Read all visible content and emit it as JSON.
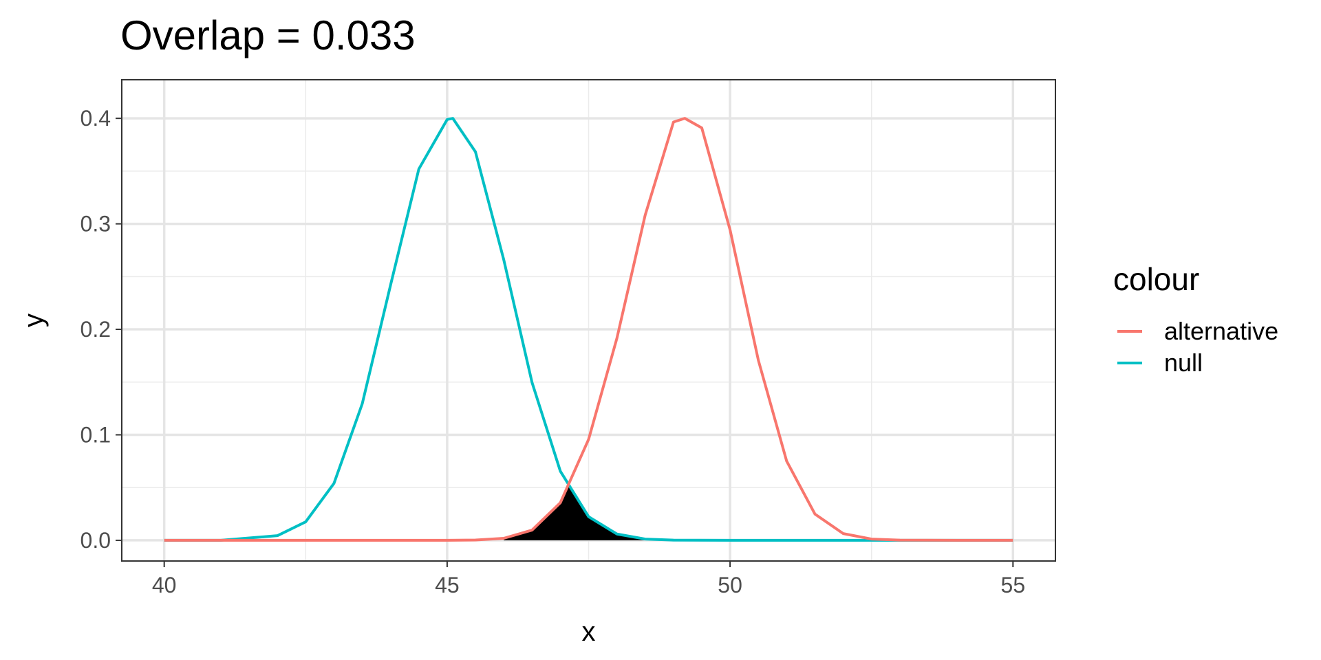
{
  "chart_data": {
    "type": "line",
    "title": "Overlap = 0.033",
    "xlabel": "x",
    "ylabel": "y",
    "xlim": [
      39.25,
      55.75
    ],
    "ylim": [
      -0.0196,
      0.4366
    ],
    "x_ticks": [
      40,
      45,
      50,
      55
    ],
    "x_tick_labels": [
      "40",
      "45",
      "50",
      "55"
    ],
    "y_ticks": [
      0.0,
      0.1,
      0.2,
      0.3,
      0.4
    ],
    "y_tick_labels": [
      "0.0",
      "0.1",
      "0.2",
      "0.3",
      "0.4"
    ],
    "grid": true,
    "legend": {
      "title": "colour",
      "position": "right"
    },
    "series": [
      {
        "name": "alternative",
        "color": "#F8766D",
        "x": [
          40.0,
          41.0,
          42.0,
          43.0,
          44.0,
          45.0,
          45.5,
          46.0,
          46.5,
          47.0,
          47.5,
          48.0,
          48.5,
          49.0,
          49.2,
          49.5,
          50.0,
          50.5,
          51.0,
          51.5,
          52.0,
          52.5,
          53.0,
          54.0,
          55.0
        ],
        "y": [
          0.0,
          0.0,
          0.0,
          0.0,
          0.0,
          0.0,
          0.0003,
          0.0019,
          0.0097,
          0.0356,
          0.0957,
          0.1915,
          0.3083,
          0.3965,
          0.4,
          0.391,
          0.2943,
          0.1707,
          0.0751,
          0.0249,
          0.0064,
          0.0012,
          0.0002,
          0.0,
          0.0
        ]
      },
      {
        "name": "null",
        "color": "#00BFC4",
        "x": [
          40.0,
          41.0,
          42.0,
          42.5,
          43.0,
          43.5,
          44.0,
          44.5,
          45.0,
          45.1,
          45.5,
          46.0,
          46.5,
          47.0,
          47.5,
          48.0,
          48.5,
          49.0,
          50.0,
          55.0
        ],
        "y": [
          0.0,
          0.0,
          0.0044,
          0.0175,
          0.054,
          0.1295,
          0.242,
          0.352,
          0.3989,
          0.4,
          0.3683,
          0.2661,
          0.1497,
          0.0656,
          0.0224,
          0.006,
          0.0012,
          0.0002,
          0.0,
          0.0
        ]
      }
    ],
    "shaded_region": {
      "label": "overlap",
      "color": "#000000",
      "x_range": [
        46.0,
        48.5
      ]
    }
  }
}
